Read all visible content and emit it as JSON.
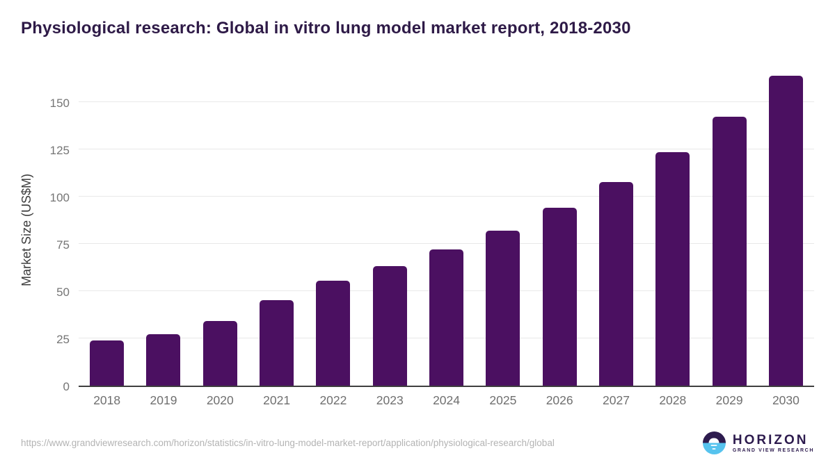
{
  "title": "Physiological research: Global in vitro lung model market report, 2018-2030",
  "chart_data": {
    "type": "bar",
    "title": "Physiological research: Global in vitro lung model market report, 2018-2030",
    "categories": [
      "2018",
      "2019",
      "2020",
      "2021",
      "2022",
      "2023",
      "2024",
      "2025",
      "2026",
      "2027",
      "2028",
      "2029",
      "2030"
    ],
    "values": [
      23.8,
      27.1,
      34.3,
      45.3,
      55.4,
      63.3,
      71.9,
      81.9,
      93.9,
      107.7,
      123.3,
      142.1,
      163.8
    ],
    "xlabel": "",
    "ylabel": "Market Size (US$M)",
    "ylim": [
      0,
      166
    ],
    "yticks": [
      0,
      25,
      50,
      75,
      100,
      125,
      150
    ],
    "grid": true,
    "legend": "none",
    "bar_color": "#4b1061"
  },
  "colors": {
    "title": "#2e1a47",
    "bar": "#4b1061",
    "gridline": "#e8e8e8",
    "axis_line": "#3f3f3f",
    "tick_text": "#757575",
    "url_text": "#b3b3b3",
    "logo_purple": "#2d1b4e",
    "logo_blue": "#56c3ee"
  },
  "footer": {
    "source_url": "https://www.grandviewresearch.com/horizon/statistics/in-vitro-lung-model-market-report/application/physiological-research/global",
    "logo": {
      "title": "HORIZON",
      "subtitle": "GRAND VIEW RESEARCH"
    }
  }
}
